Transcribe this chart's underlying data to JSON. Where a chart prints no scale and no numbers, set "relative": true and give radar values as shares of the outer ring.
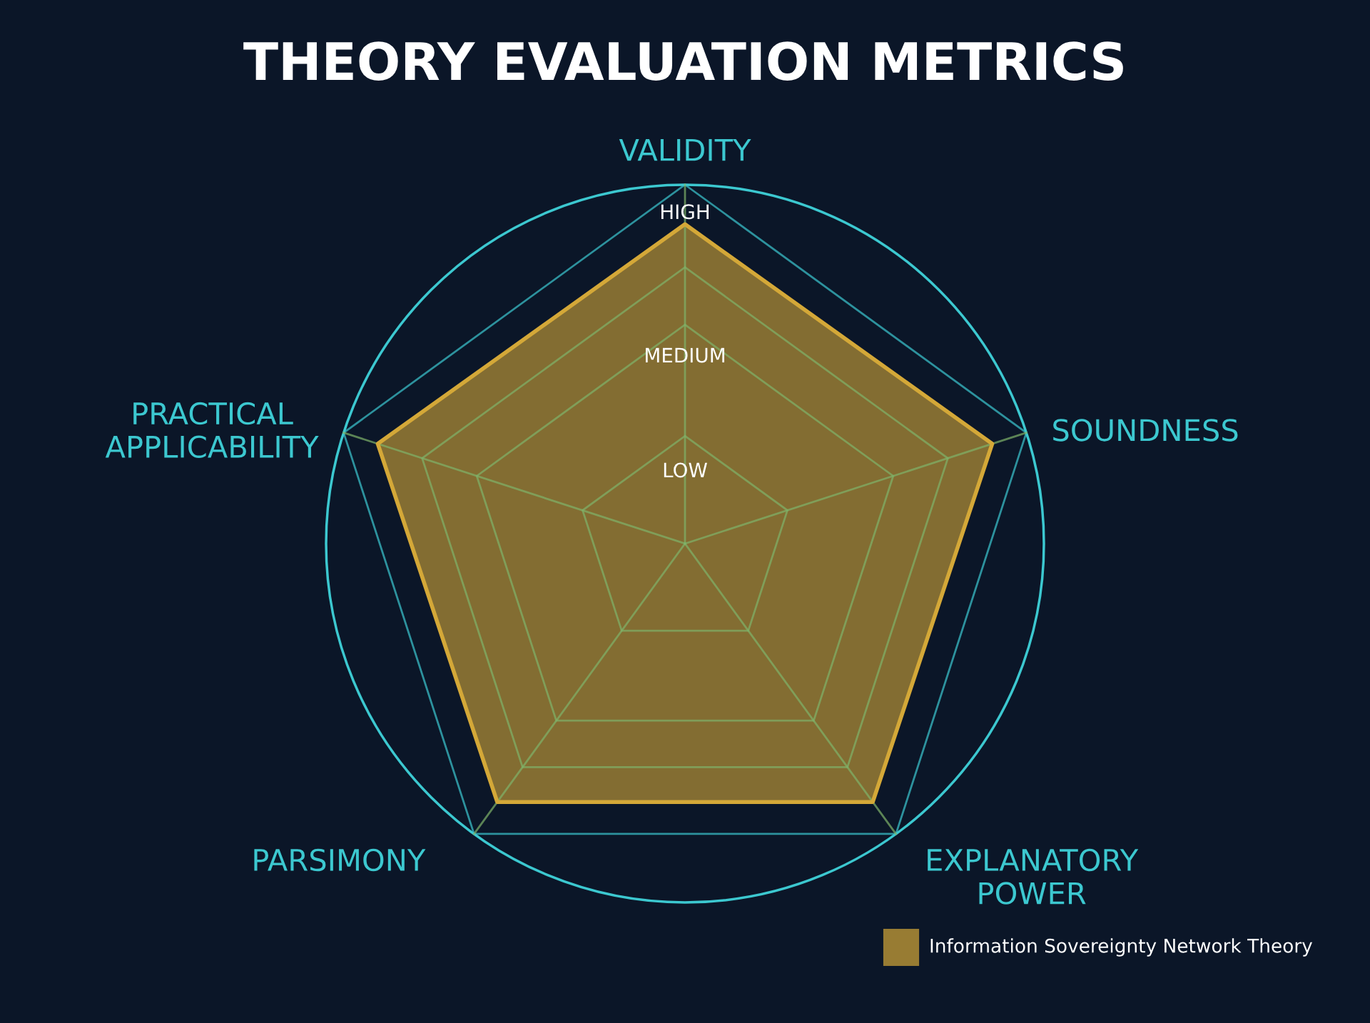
{
  "chart_data": {
    "type": "radar",
    "title": "THEORY EVALUATION METRICS",
    "categories": [
      "VALIDITY",
      "SOUNDNESS",
      "EXPLANATORY\nPOWER",
      "PARSIMONY",
      "PRACTICAL\nAPPLICABILITY"
    ],
    "series": [
      {
        "name": "Information Sovereignty Network Theory",
        "color": "#d4a838",
        "values": [
          0.89,
          0.9,
          0.89,
          0.89,
          0.9
        ]
      }
    ],
    "relative": true,
    "annotations": [
      "LOW",
      "MEDIUM",
      "HIGH"
    ],
    "grid": true,
    "legend": "bottom right"
  }
}
